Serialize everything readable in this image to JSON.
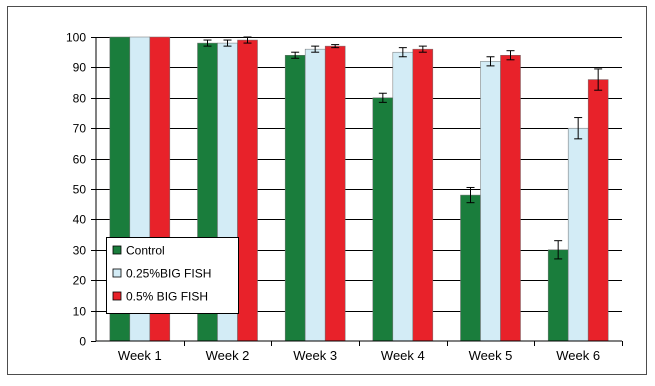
{
  "chart_data": {
    "type": "bar",
    "title": "",
    "xlabel": "",
    "ylabel": "",
    "ylim": [
      0,
      100
    ],
    "yticks": [
      0,
      10,
      20,
      30,
      40,
      50,
      60,
      70,
      80,
      90,
      100
    ],
    "grid": "horizontal",
    "legend_position": "bottom-left",
    "categories": [
      "Week 1",
      "Week 2",
      "Week 3",
      "Week 4",
      "Week 5",
      "Week 6"
    ],
    "series": [
      {
        "name": "Control",
        "color": "#1a7d3c",
        "values": [
          100,
          98,
          94,
          80,
          48,
          30
        ],
        "errors": [
          0,
          1,
          1,
          1.5,
          2.5,
          3
        ]
      },
      {
        "name": "0.25%BIG FISH",
        "color": "#d3ecf6",
        "values": [
          100,
          98,
          96,
          95,
          92,
          70
        ],
        "errors": [
          0,
          1,
          1,
          1.5,
          1.5,
          3.5
        ]
      },
      {
        "name": "0.5% BIG FISH",
        "color": "#e8222a",
        "values": [
          100,
          99,
          97,
          96,
          94,
          86
        ],
        "errors": [
          0,
          1,
          0.5,
          1,
          1.5,
          3.5
        ]
      }
    ]
  }
}
